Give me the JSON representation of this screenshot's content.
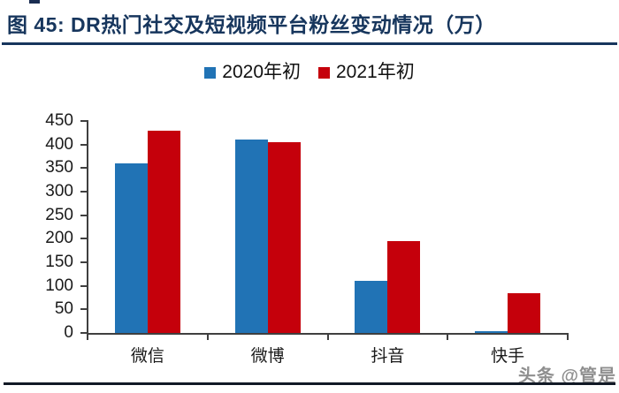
{
  "page": {
    "title": "图 45: DR热门社交及短视频平台粉丝变动情况（万）",
    "watermark": "头条 @管是"
  },
  "colors": {
    "title_navy": "#17365D",
    "axis": "#3F3F3F",
    "tick_label": "#1A1A1A",
    "watermark_gray": "#8F8F8F",
    "bottom_rule": "#121A26",
    "series_2020_blue": "#2173B5",
    "series_2021_red": "#C5000B"
  },
  "chart_data": {
    "type": "bar",
    "title": "DR热门社交及短视频平台粉丝变动情况",
    "unit": "万",
    "categories": [
      "微信",
      "微博",
      "抖音",
      "快手"
    ],
    "series": [
      {
        "name": "2020年初",
        "color": "#2173B5",
        "values": [
          360,
          410,
          110,
          4
        ]
      },
      {
        "name": "2021年初",
        "color": "#C5000B",
        "values": [
          430,
          405,
          195,
          85
        ]
      }
    ],
    "ylim": [
      0,
      450
    ],
    "ytick_step": 50,
    "yticks": [
      0,
      50,
      100,
      150,
      200,
      250,
      300,
      350,
      400,
      450
    ],
    "grid": false,
    "legend_position": "top-center"
  }
}
